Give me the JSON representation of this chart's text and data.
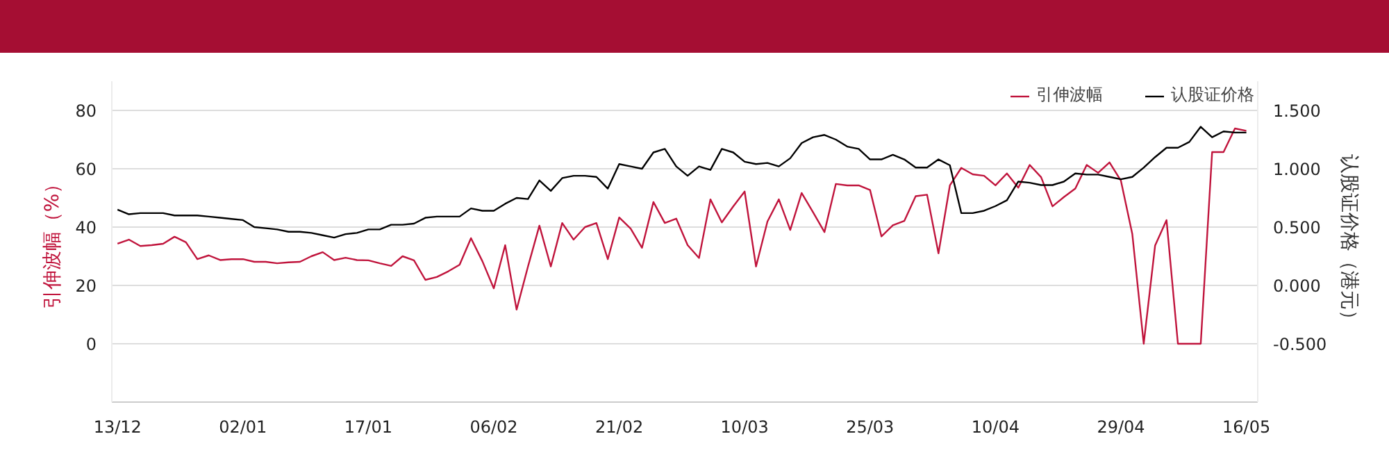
{
  "chart_data": {
    "type": "line",
    "ylabel": "引伸波幅（%）",
    "y2label": "认股证价格（港元）",
    "categories": [
      "13/12",
      null,
      null,
      null,
      null,
      null,
      null,
      null,
      null,
      null,
      null,
      "02/01",
      null,
      null,
      null,
      null,
      null,
      null,
      null,
      null,
      null,
      null,
      "17/01",
      null,
      null,
      null,
      null,
      null,
      null,
      null,
      null,
      null,
      null,
      "06/02",
      null,
      null,
      null,
      null,
      null,
      null,
      null,
      null,
      null,
      null,
      "21/02",
      null,
      null,
      null,
      null,
      null,
      null,
      null,
      null,
      null,
      null,
      "10/03",
      null,
      null,
      null,
      null,
      null,
      null,
      null,
      null,
      null,
      null,
      "25/03",
      null,
      null,
      null,
      null,
      null,
      null,
      null,
      null,
      null,
      null,
      "10/04",
      null,
      null,
      null,
      null,
      null,
      null,
      null,
      null,
      null,
      null,
      "29/04",
      null,
      null,
      null,
      null,
      null,
      null,
      null,
      null,
      null,
      null,
      "16/05"
    ],
    "ylim": [
      -20,
      90
    ],
    "yticks": [
      0,
      20,
      40,
      60,
      80
    ],
    "y2lim": [
      -1.0,
      1.75
    ],
    "y2ticks": [
      {
        "value": -0.5,
        "label": "-0.500"
      },
      {
        "value": 0,
        "label": "0.000"
      },
      {
        "value": 0.5,
        "label": "0.500"
      },
      {
        "value": 1,
        "label": "1.000"
      },
      {
        "value": 1.5,
        "label": "1.500"
      }
    ],
    "grid": "y",
    "legend": "top right",
    "marker": "none",
    "line_style": "solid",
    "series": [
      {
        "name": "引伸波幅",
        "color": "#c0143c",
        "values": [
          34.3,
          35.7,
          33.5,
          33.8,
          34.3,
          36.7,
          34.8,
          29.0,
          30.3,
          28.7,
          29.0,
          29.0,
          28.1,
          28.1,
          27.6,
          27.9,
          28.1,
          30.0,
          31.4,
          28.7,
          29.5,
          28.7,
          28.6,
          27.6,
          26.7,
          30.0,
          28.6,
          21.9,
          22.9,
          24.8,
          27.1,
          36.2,
          28.3,
          19.0,
          33.8,
          11.7,
          26.5,
          40.5,
          26.5,
          41.4,
          35.7,
          40.0,
          41.4,
          29.0,
          43.3,
          39.5,
          32.9,
          48.6,
          41.4,
          42.9,
          33.8,
          29.4,
          49.5,
          41.6,
          47.1,
          52.2,
          26.5,
          41.9,
          49.5,
          39.0,
          51.7,
          45.1,
          38.3,
          54.8,
          54.3,
          54.3,
          52.7,
          36.8,
          40.6,
          42.1,
          50.6,
          51.1,
          31.0,
          54.3,
          60.3,
          58.1,
          57.6,
          54.3,
          58.4,
          53.5,
          61.3,
          57.1,
          47.1,
          50.3,
          53.2,
          61.3,
          58.6,
          62.2,
          55.9,
          37.6,
          0,
          33.7,
          42.4,
          0,
          0,
          0,
          65.7,
          65.7,
          73.8,
          73.0
        ]
      },
      {
        "name": "认股证价格",
        "color": "#000000",
        "axis": "y2",
        "values": [
          0.65,
          0.61,
          0.62,
          0.62,
          0.62,
          0.6,
          0.6,
          0.6,
          0.59,
          0.58,
          0.57,
          0.56,
          0.5,
          0.49,
          0.48,
          0.46,
          0.46,
          0.45,
          0.43,
          0.41,
          0.44,
          0.45,
          0.48,
          0.48,
          0.52,
          0.52,
          0.53,
          0.58,
          0.59,
          0.59,
          0.59,
          0.66,
          0.64,
          0.64,
          0.7,
          0.75,
          0.74,
          0.9,
          0.81,
          0.92,
          0.94,
          0.94,
          0.93,
          0.83,
          1.04,
          1.02,
          1.0,
          1.14,
          1.17,
          1.02,
          0.94,
          1.02,
          0.99,
          1.17,
          1.14,
          1.06,
          1.04,
          1.05,
          1.02,
          1.09,
          1.22,
          1.27,
          1.29,
          1.25,
          1.19,
          1.17,
          1.08,
          1.08,
          1.12,
          1.08,
          1.01,
          1.01,
          1.08,
          1.03,
          0.62,
          0.62,
          0.64,
          0.68,
          0.73,
          0.89,
          0.88,
          0.86,
          0.86,
          0.89,
          0.96,
          0.95,
          0.95,
          0.93,
          0.91,
          0.93,
          1.01,
          1.1,
          1.18,
          1.18,
          1.23,
          1.36,
          1.27,
          1.32,
          1.31,
          1.31
        ]
      }
    ]
  }
}
